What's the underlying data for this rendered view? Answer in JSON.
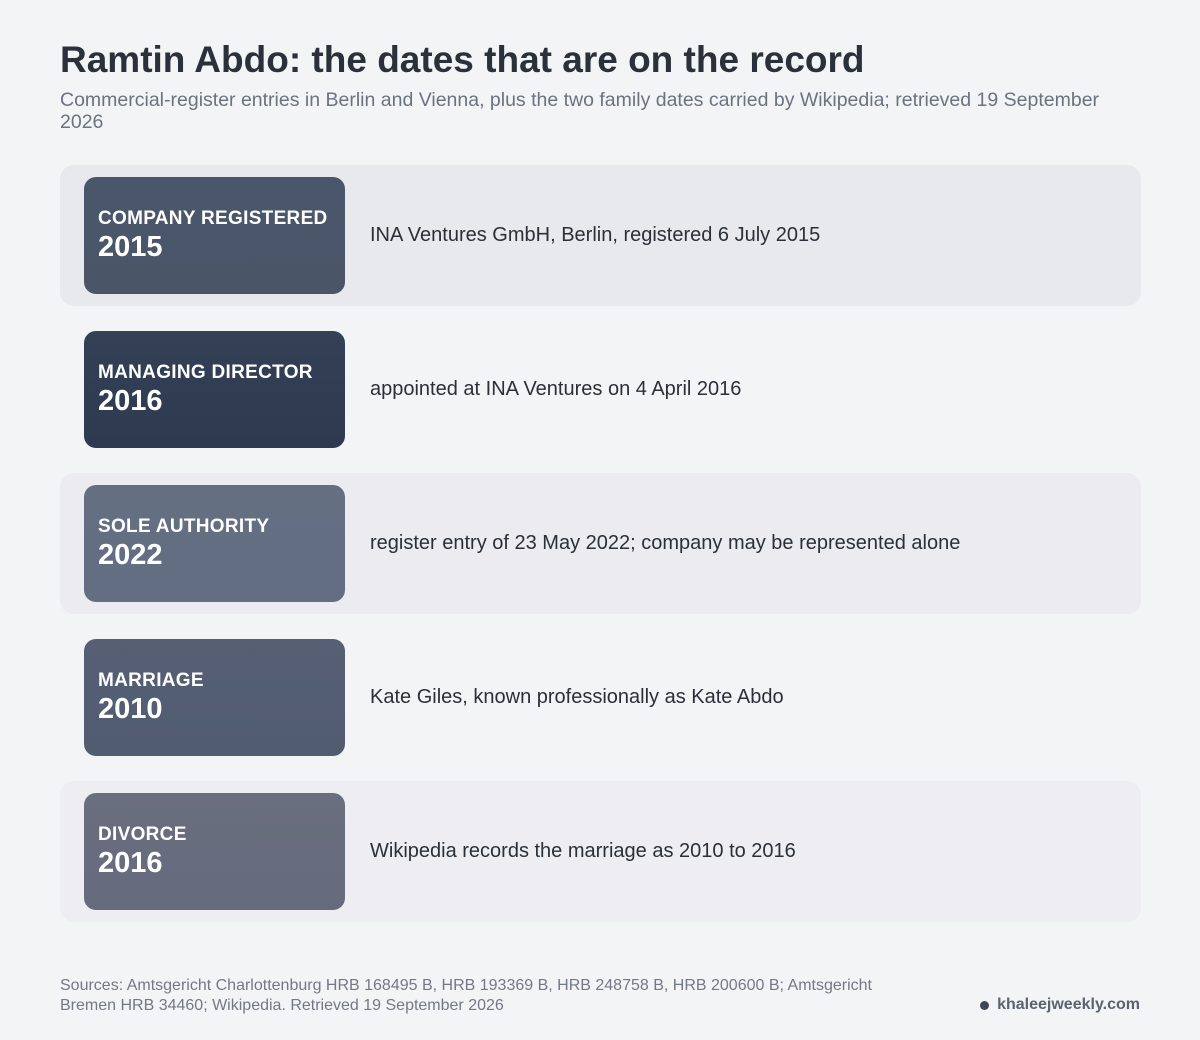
{
  "header": {
    "title": "Ramtin Abdo: the dates that are on the record",
    "subtitle": "Commercial-register entries in Berlin and Vienna, plus the two family dates carried by Wikipedia; retrieved 19 September 2026"
  },
  "events": [
    {
      "label": "COMPANY REGISTERED",
      "year": "2015",
      "description": "INA Ventures GmbH, Berlin, registered 6 July 2015",
      "badge_color_top": "#4a566a",
      "badge_color_bottom": "#4a5568",
      "row_style": "shaded"
    },
    {
      "label": "MANAGING DIRECTOR",
      "year": "2016",
      "description": "appointed at INA Ventures on 4 April 2016",
      "badge_color_top": "#344055",
      "badge_color_bottom": "#2d3a50",
      "row_style": "plain"
    },
    {
      "label": "SOLE AUTHORITY",
      "year": "2022",
      "description": "register entry of 23 May 2022; company may be represented alone",
      "badge_color_top": "#646f82",
      "badge_color_bottom": "#646e82",
      "row_style": "shaded light"
    },
    {
      "label": "MARRIAGE",
      "year": "2010",
      "description": "Kate Giles, known professionally as Kate Abdo",
      "badge_color_top": "#565f73",
      "badge_color_bottom": "#525c70",
      "row_style": "plain"
    },
    {
      "label": "DIVORCE",
      "year": "2016",
      "description": "Wikipedia records the marriage as 2010 to 2016",
      "badge_color_top": "#6a6e7f",
      "badge_color_bottom": "#656b7d",
      "row_style": "shaded lighter"
    }
  ],
  "footer": {
    "sources": "Sources: Amtsgericht Charlottenburg HRB 168495 B, HRB 193369 B, HRB 248758 B, HRB 200600 B; Amtsgericht Bremen HRB 34460; Wikipedia. Retrieved 19 September 2026",
    "brand": "khaleejweekly.com"
  }
}
